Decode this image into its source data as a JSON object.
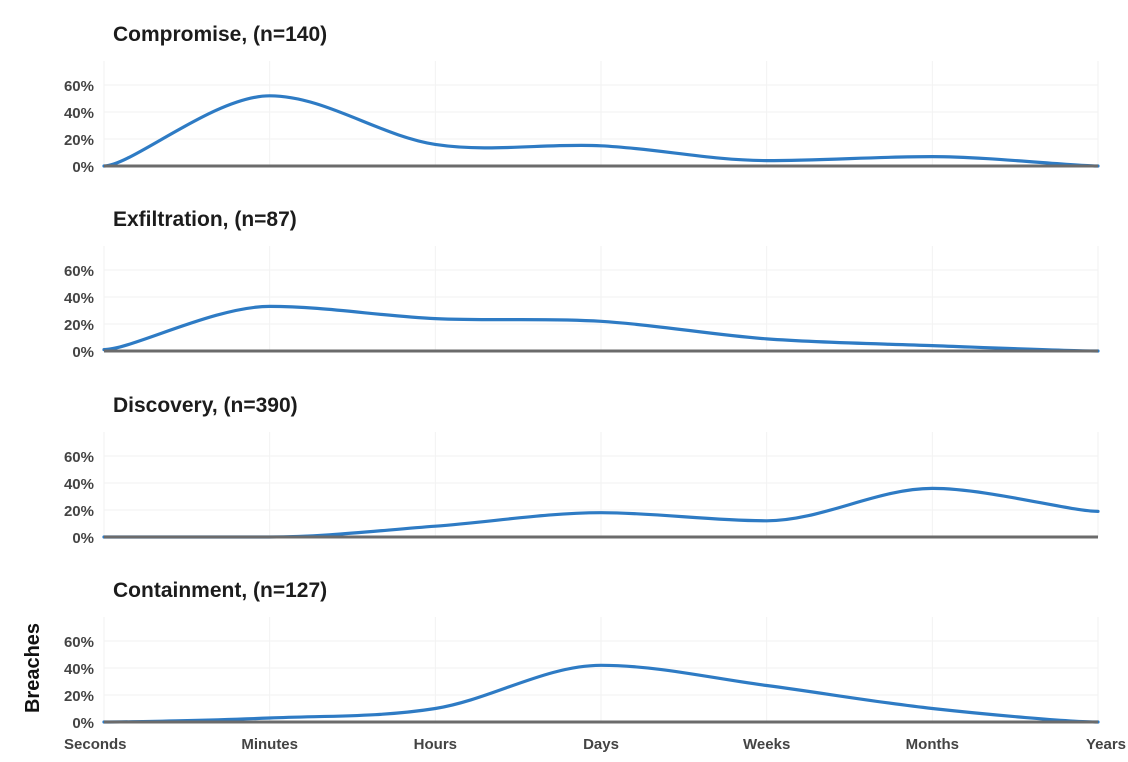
{
  "chart_data": {
    "type": "line",
    "title": "",
    "xlabel": "",
    "ylabel": "Breaches",
    "categories": [
      "Seconds",
      "Minutes",
      "Hours",
      "Days",
      "Weeks",
      "Months",
      "Years"
    ],
    "y_ticks": [
      "60%",
      "40%",
      "20%",
      "0%"
    ],
    "ylim": [
      0,
      60
    ],
    "grid": true,
    "line_color": "#2e7bc4",
    "panels": [
      {
        "title": "Compromise, (n=140)",
        "values": [
          0,
          52,
          16,
          15,
          4,
          7,
          0
        ]
      },
      {
        "title": "Exfiltration, (n=87)",
        "values": [
          1,
          33,
          24,
          22,
          9,
          4,
          0
        ]
      },
      {
        "title": "Discovery, (n=390)",
        "values": [
          0,
          0,
          8,
          18,
          12,
          36,
          19
        ]
      },
      {
        "title": "Containment, (n=127)",
        "values": [
          0,
          3,
          10,
          42,
          27,
          10,
          0
        ]
      }
    ]
  }
}
